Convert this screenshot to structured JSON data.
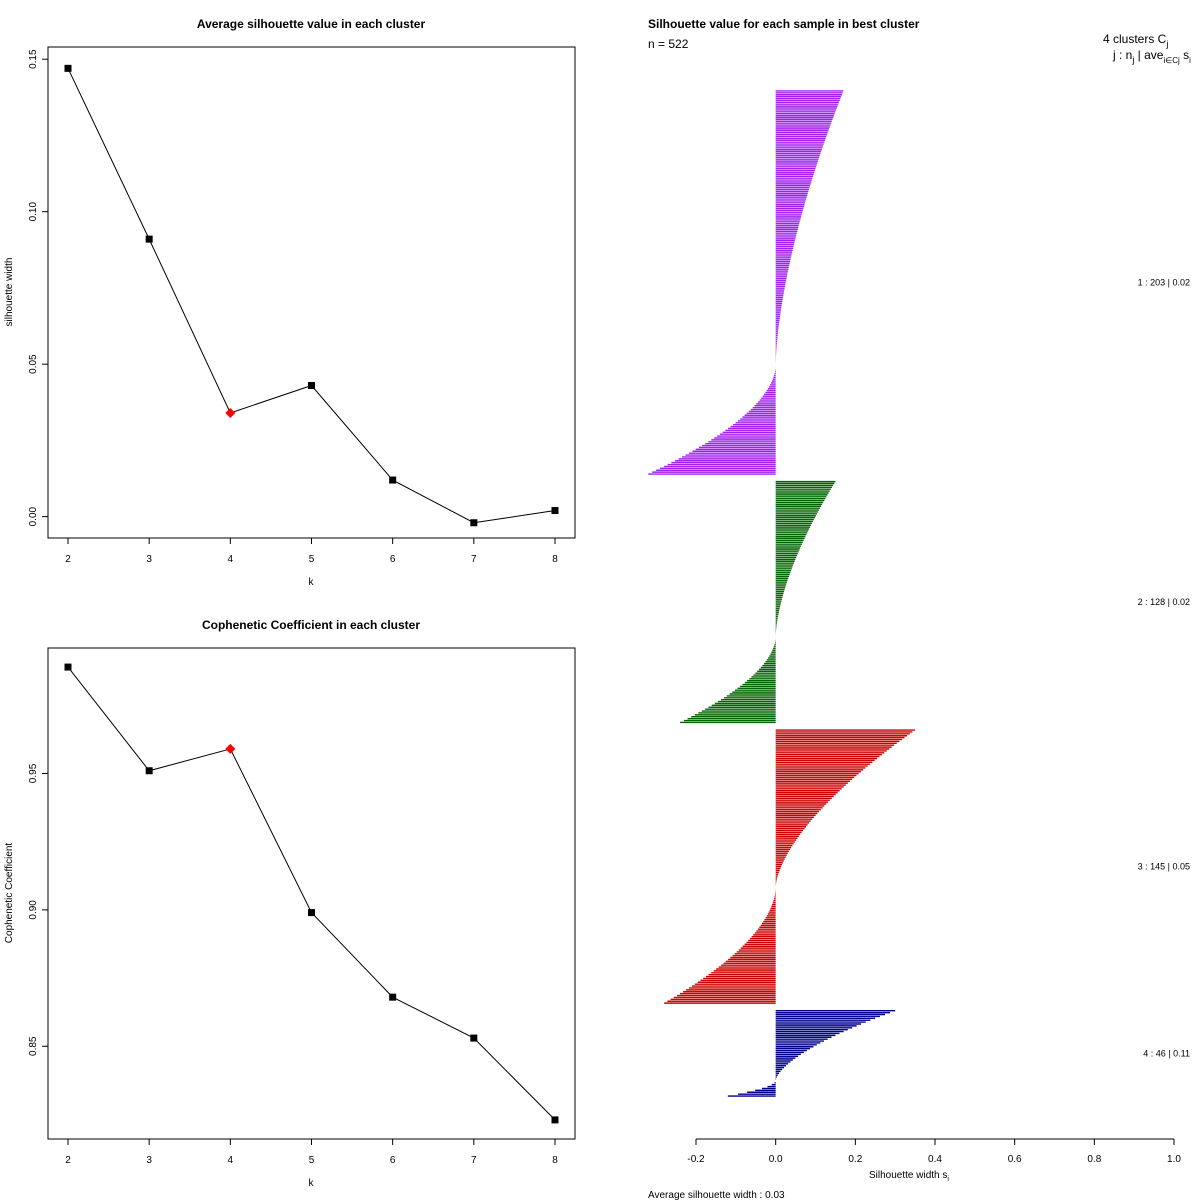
{
  "chart_data": [
    {
      "type": "line",
      "title": "Average silhouette value in each cluster",
      "xlabel": "k",
      "ylabel": "silhouette width",
      "x": [
        2,
        3,
        4,
        5,
        6,
        7,
        8
      ],
      "y": [
        0.147,
        0.091,
        0.034,
        0.043,
        0.012,
        -0.002,
        0.002
      ],
      "highlight_x": 4,
      "xlim": [
        2,
        8
      ],
      "ylim": [
        -0.007,
        0.154
      ],
      "xticks": [
        "2",
        "3",
        "4",
        "5",
        "6",
        "7",
        "8"
      ],
      "yticks": [
        0.0,
        0.05,
        0.1,
        0.15
      ],
      "ytick_labels": [
        "0.00",
        "0.05",
        "0.10",
        "0.15"
      ],
      "colors": {
        "line": "#000000",
        "point": "#000000",
        "highlight": "#ff0000"
      }
    },
    {
      "type": "line",
      "title": "Cophenetic Coefficient in each cluster",
      "xlabel": "k",
      "ylabel": "Cophenetic Coefficient",
      "x": [
        2,
        3,
        4,
        5,
        6,
        7,
        8
      ],
      "y": [
        0.989,
        0.951,
        0.959,
        0.899,
        0.868,
        0.853,
        0.823
      ],
      "highlight_x": 4,
      "xlim": [
        2,
        8
      ],
      "ylim": [
        0.816,
        0.996
      ],
      "xticks": [
        "2",
        "3",
        "4",
        "5",
        "6",
        "7",
        "8"
      ],
      "yticks": [
        0.85,
        0.9,
        0.95
      ],
      "ytick_labels": [
        "0.85",
        "0.90",
        "0.95"
      ],
      "colors": {
        "line": "#000000",
        "point": "#000000",
        "highlight": "#ff0000"
      }
    },
    {
      "type": "bar",
      "orientation": "horizontal",
      "title": "Silhouette value for each sample in best cluster",
      "n_label": "n = 522",
      "header_line1": "4  clusters  C",
      "header_line1_sub": "j",
      "header_line2": "j :  n",
      "header_line2_sub": "j",
      "header_line2_rest": " | ave",
      "header_line2_sub2": "i∈Cj",
      "header_line2_end": " s",
      "header_line2_end_sub": "i",
      "xlabel": "Silhouette width s",
      "xlabel_sub": "i",
      "xlim": [
        -0.2,
        1.0
      ],
      "xticks": [
        -0.2,
        0.0,
        0.2,
        0.4,
        0.6,
        0.8,
        1.0
      ],
      "xtick_labels": [
        "-0.2",
        "0.0",
        "0.2",
        "0.4",
        "0.6",
        "0.8",
        "1.0"
      ],
      "avg_label": "Average silhouette width :  0.03",
      "clusters": [
        {
          "id": 1,
          "n": 203,
          "avg": 0.02,
          "label": "1 :  203  |  0.02",
          "color": "#a020f0",
          "max": 0.17,
          "zero_frac": 0.72,
          "min": -0.32
        },
        {
          "id": 2,
          "n": 128,
          "avg": 0.02,
          "label": "2 :  128  |  0.02",
          "color": "#006400",
          "max": 0.15,
          "zero_frac": 0.65,
          "min": -0.24
        },
        {
          "id": 3,
          "n": 145,
          "avg": 0.05,
          "label": "3 :  145  |  0.05",
          "color": "#cc0000",
          "max": 0.35,
          "zero_frac": 0.58,
          "min": -0.28
        },
        {
          "id": 4,
          "n": 46,
          "avg": 0.11,
          "label": "4 :  46  |  0.11",
          "color": "#00008b",
          "max": 0.3,
          "zero_frac": 0.82,
          "min": -0.12
        }
      ]
    }
  ]
}
